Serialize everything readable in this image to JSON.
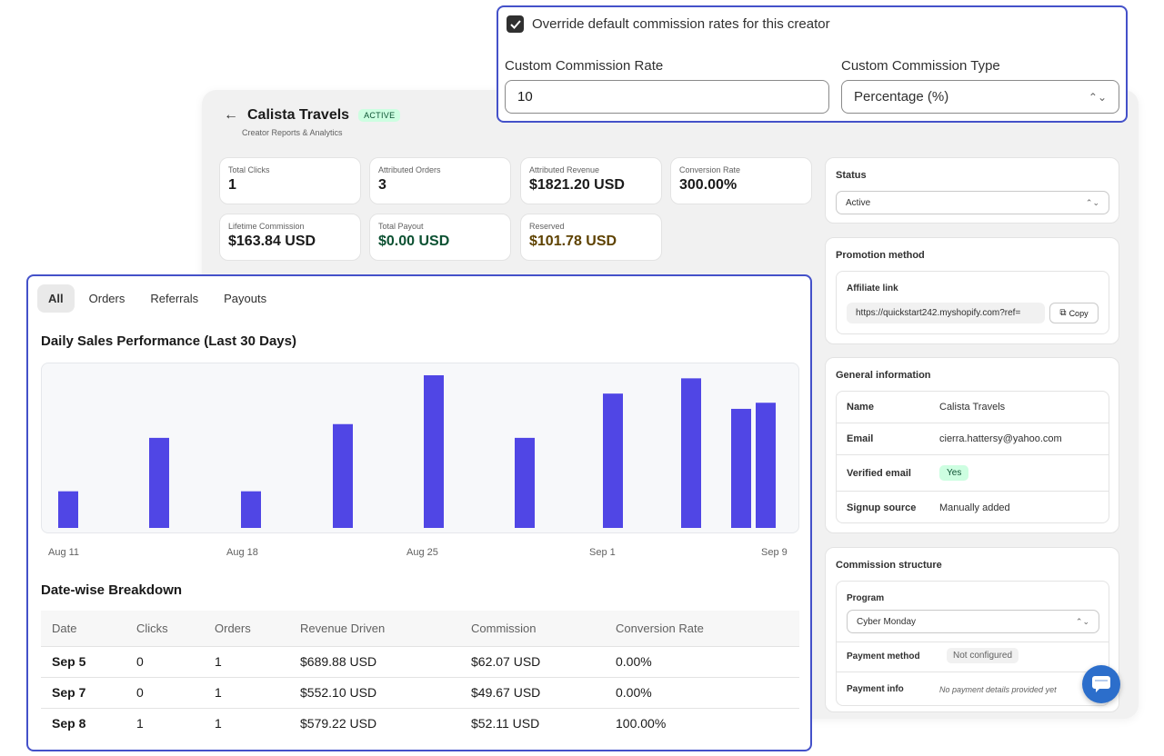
{
  "header": {
    "title": "Calista Travels",
    "status_badge": "ACTIVE",
    "subtitle": "Creator Reports & Analytics"
  },
  "stats": [
    {
      "label": "Total Clicks",
      "value": "1",
      "color": "#1a1a1a"
    },
    {
      "label": "Attributed Orders",
      "value": "3",
      "color": "#1a1a1a"
    },
    {
      "label": "Attributed Revenue",
      "value": "$1821.20 USD",
      "color": "#1a1a1a"
    },
    {
      "label": "Conversion Rate",
      "value": "300.00%",
      "color": "#1a1a1a"
    },
    {
      "label": "Lifetime Commission",
      "value": "$163.84 USD",
      "color": "#1a1a1a"
    },
    {
      "label": "Total Payout",
      "value": "$0.00 USD",
      "color": "#0c5132"
    },
    {
      "label": "Reserved",
      "value": "$101.78 USD",
      "color": "#5e4200"
    }
  ],
  "status_card": {
    "title": "Status",
    "value": "Active"
  },
  "promotion": {
    "title": "Promotion method",
    "affiliate_label": "Affiliate link",
    "link": "https://quickstart242.myshopify.com?ref=",
    "copy_label": "Copy"
  },
  "general_info": {
    "title": "General information",
    "rows": [
      {
        "key": "Name",
        "value": "Calista Travels"
      },
      {
        "key": "Email",
        "value": "cierra.hattersy@yahoo.com"
      },
      {
        "key": "Verified email",
        "value": "Yes"
      },
      {
        "key": "Signup source",
        "value": "Manually added"
      }
    ]
  },
  "commission_structure": {
    "title": "Commission structure",
    "program_label": "Program",
    "program_value": "Cyber Monday",
    "payment_method_label": "Payment method",
    "payment_method_value": "Not configured",
    "payment_info_label": "Payment info",
    "payment_info_value": "No payment details provided yet"
  },
  "override": {
    "checkbox_label": "Override default commission rates for this creator",
    "checked": true,
    "rate_label": "Custom Commission Rate",
    "rate_value": "10",
    "type_label": "Custom Commission Type",
    "type_value": "Percentage (%)"
  },
  "tabs": [
    "All",
    "Orders",
    "Referrals",
    "Payouts"
  ],
  "chart_title": "Daily Sales Performance (Last 30 Days)",
  "chart_data": {
    "type": "bar",
    "title": "Daily Sales Performance (Last 30 Days)",
    "x_ticks": [
      "Aug 11",
      "Aug 18",
      "Aug 25",
      "Sep 1",
      "Sep 9"
    ],
    "bar_color": "#5046e5",
    "values": [
      0.24,
      0.59,
      0.24,
      0.68,
      1.0,
      0.59,
      0.88,
      0.98,
      0.78,
      0.82
    ]
  },
  "breakdown_title": "Date-wise Breakdown",
  "table": {
    "headers": [
      "Date",
      "Clicks",
      "Orders",
      "Revenue Driven",
      "Commission",
      "Conversion Rate"
    ],
    "rows": [
      [
        "Sep 5",
        "0",
        "1",
        "$689.88 USD",
        "$62.07 USD",
        "0.00%"
      ],
      [
        "Sep 7",
        "0",
        "1",
        "$552.10 USD",
        "$49.67 USD",
        "0.00%"
      ],
      [
        "Sep 8",
        "1",
        "1",
        "$579.22 USD",
        "$52.11 USD",
        "100.00%"
      ]
    ]
  }
}
